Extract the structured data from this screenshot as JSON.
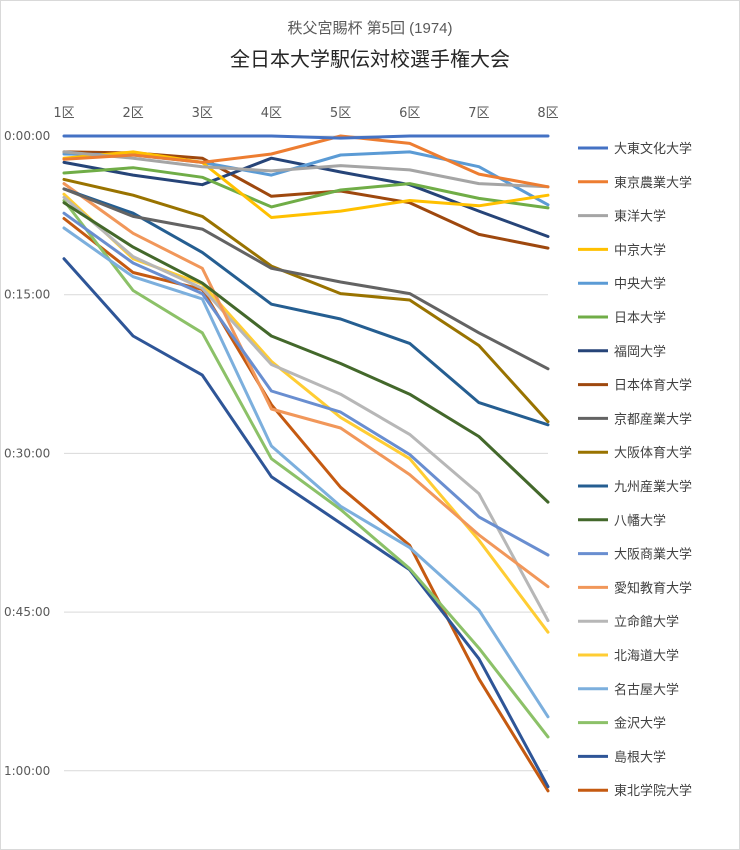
{
  "chart_data": {
    "type": "line",
    "title": "秩父宮賜杯 第5回 (1974)",
    "subtitle": "全日本大学駅伝対校選手権大会",
    "categories": [
      "1区",
      "2区",
      "3区",
      "4区",
      "5区",
      "6区",
      "7区",
      "8区"
    ],
    "y_ticks": [
      "0:00:00",
      "0:15:00",
      "0:30:00",
      "0:45:00",
      "1:00:00"
    ],
    "y_unit": "minutes behind leader",
    "ylim": [
      0,
      62
    ],
    "y_reversed": true,
    "grid": true,
    "legend_position": "right",
    "series": [
      {
        "name": "大東文化大学",
        "color": "#4472C4",
        "values": [
          0,
          0,
          0,
          0,
          0.2,
          0,
          0,
          0
        ]
      },
      {
        "name": "東京農業大学",
        "color": "#ED7D31",
        "values": [
          2.2,
          1.8,
          2.5,
          1.7,
          0,
          0.7,
          3.6,
          4.8
        ]
      },
      {
        "name": "東洋大学",
        "color": "#A5A5A5",
        "values": [
          1.5,
          2.1,
          2.9,
          3.3,
          2.8,
          3.2,
          4.5,
          4.8
        ]
      },
      {
        "name": "中京大学",
        "color": "#FFC000",
        "values": [
          2.1,
          1.5,
          2.5,
          7.7,
          7.1,
          6.1,
          6.6,
          5.6
        ]
      },
      {
        "name": "中央大学",
        "color": "#5B9BD5",
        "values": [
          1.7,
          1.8,
          2.5,
          3.7,
          1.8,
          1.5,
          2.9,
          6.5
        ]
      },
      {
        "name": "日本大学",
        "color": "#70AD47",
        "values": [
          3.5,
          3.0,
          3.9,
          6.7,
          5.1,
          4.5,
          5.9,
          6.8
        ]
      },
      {
        "name": "福岡大学",
        "color": "#264478",
        "values": [
          2.5,
          3.7,
          4.6,
          2.1,
          3.4,
          4.6,
          7.1,
          9.5
        ]
      },
      {
        "name": "日本体育大学",
        "color": "#9E480E",
        "values": [
          1.5,
          1.6,
          2.1,
          5.7,
          5.2,
          6.3,
          9.3,
          10.6
        ]
      },
      {
        "name": "京都産業大学",
        "color": "#636363",
        "values": [
          5.0,
          7.6,
          8.8,
          12.5,
          13.8,
          14.9,
          18.6,
          22.0
        ]
      },
      {
        "name": "大阪体育大学",
        "color": "#997300",
        "values": [
          4.1,
          5.6,
          7.6,
          12.3,
          14.9,
          15.5,
          19.8,
          27.0
        ]
      },
      {
        "name": "九州産業大学",
        "color": "#255E91",
        "values": [
          5.0,
          7.3,
          11.0,
          15.9,
          17.3,
          19.6,
          25.2,
          27.3
        ]
      },
      {
        "name": "八幡大学",
        "color": "#43682B",
        "values": [
          6.3,
          10.5,
          13.9,
          18.9,
          21.5,
          24.4,
          28.4,
          34.6
        ]
      },
      {
        "name": "大阪商業大学",
        "color": "#698ED0",
        "values": [
          7.3,
          12.0,
          14.9,
          24.1,
          26.1,
          30.1,
          36.0,
          39.6
        ]
      },
      {
        "name": "愛知教育大学",
        "color": "#F1975A",
        "values": [
          4.5,
          9.2,
          12.5,
          25.8,
          27.6,
          32.0,
          37.7,
          42.6
        ]
      },
      {
        "name": "立命館大学",
        "color": "#B7B7B7",
        "values": [
          5.8,
          11.4,
          14.4,
          21.6,
          24.4,
          28.2,
          33.8,
          45.8
        ]
      },
      {
        "name": "北海道大学",
        "color": "#FFCD33",
        "values": [
          5.5,
          11.6,
          14.0,
          21.3,
          26.6,
          30.5,
          38.2,
          46.9
        ]
      },
      {
        "name": "名古屋大学",
        "color": "#7CAFDD",
        "values": [
          8.7,
          13.3,
          15.4,
          29.3,
          35.0,
          38.9,
          44.8,
          54.9
        ]
      },
      {
        "name": "金沢大学",
        "color": "#8CC168",
        "values": [
          6.1,
          14.6,
          18.6,
          30.5,
          35.3,
          40.9,
          48.4,
          56.8
        ]
      },
      {
        "name": "島根大学",
        "color": "#2E5597",
        "values": [
          11.6,
          18.9,
          22.6,
          32.2,
          36.6,
          41.0,
          49.4,
          61.5
        ]
      },
      {
        "name": "東北学院大学",
        "color": "#C55A11",
        "values": [
          7.8,
          12.9,
          14.5,
          25.4,
          33.2,
          38.7,
          51.3,
          61.9
        ]
      }
    ]
  }
}
